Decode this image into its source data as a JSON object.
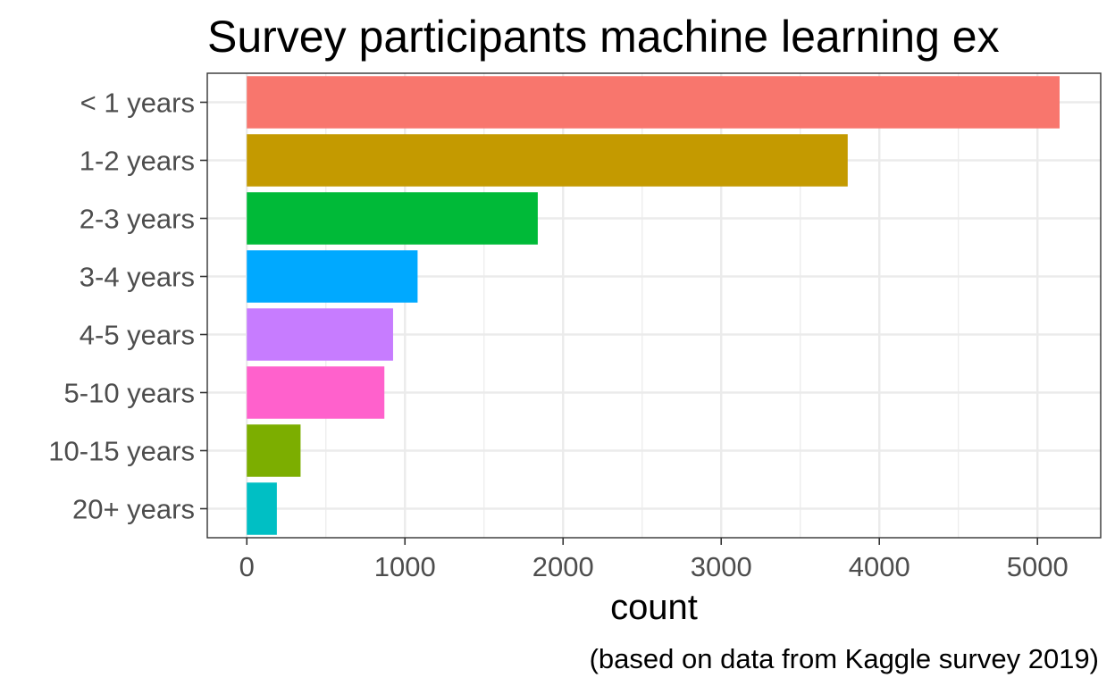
{
  "chart_data": {
    "type": "bar",
    "orientation": "horizontal",
    "title": "Survey participants machine learning ex",
    "xlabel": "count",
    "ylabel": "",
    "caption": "(based on data from Kaggle survey 2019)",
    "categories": [
      "< 1 years",
      "1-2 years",
      "2-3 years",
      "3-4 years",
      "4-5 years",
      "5-10 years",
      "10-15 years",
      "20+ years"
    ],
    "values": [
      5140,
      3800,
      1840,
      1080,
      925,
      870,
      340,
      190
    ],
    "colors": [
      "#F8766D",
      "#C49A00",
      "#00BA38",
      "#00A9FF",
      "#C77CFF",
      "#FF61CC",
      "#7CAE00",
      "#00BFC4"
    ],
    "xlim": [
      -250,
      5400
    ],
    "xticks": [
      0,
      1000,
      2000,
      3000,
      4000,
      5000
    ],
    "grid": true,
    "legend": "none"
  }
}
